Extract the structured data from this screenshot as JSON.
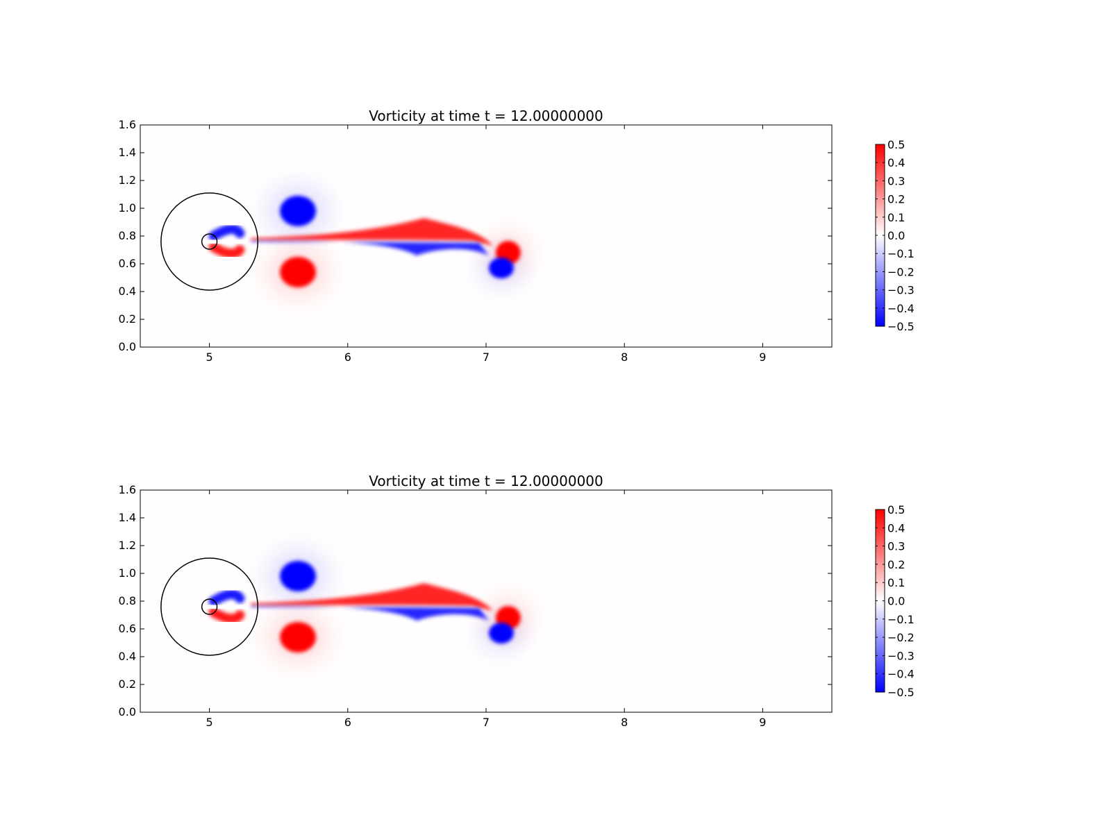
{
  "chart_data": [
    {
      "type": "heatmap",
      "title": "Vorticity at time t =    12.00000000",
      "xlabel": "",
      "ylabel": "",
      "xlim": [
        4.5,
        9.5
      ],
      "ylim": [
        0.0,
        1.6
      ],
      "x_ticks": [
        5,
        6,
        7,
        8,
        9
      ],
      "y_ticks": [
        0.0,
        0.2,
        0.4,
        0.6,
        0.8,
        1.0,
        1.2,
        1.4,
        1.6
      ],
      "colorbar": {
        "min": -0.5,
        "max": 0.5,
        "colormap": [
          "#0000ff",
          "#ffffff",
          "#ff0000"
        ],
        "ticks": [
          0.5,
          0.4,
          0.3,
          0.2,
          0.1,
          0.0,
          -0.1,
          -0.2,
          -0.3,
          -0.4,
          -0.5
        ],
        "tick_labels": [
          "0.5",
          "0.4",
          "0.3",
          "0.2",
          "0.1",
          "0.0",
          "−0.1",
          "−0.2",
          "−0.3",
          "−0.4",
          "−0.5"
        ]
      },
      "circles": [
        {
          "cx": 5.0,
          "cy": 0.76,
          "r": 0.35
        },
        {
          "cx": 5.0,
          "cy": 0.76,
          "r": 0.055
        }
      ],
      "vortices": [
        {
          "x": 5.64,
          "y": 0.98,
          "rx": 0.13,
          "ry": 0.11,
          "value": -0.5
        },
        {
          "x": 5.64,
          "y": 0.54,
          "rx": 0.13,
          "ry": 0.11,
          "value": 0.5
        },
        {
          "x": 7.16,
          "y": 0.68,
          "rx": 0.09,
          "ry": 0.085,
          "value": 0.5
        },
        {
          "x": 7.11,
          "y": 0.57,
          "rx": 0.09,
          "ry": 0.075,
          "value": -0.5
        }
      ]
    },
    {
      "type": "heatmap",
      "title": "Vorticity at time t =    12.00000000",
      "xlabel": "",
      "ylabel": "",
      "xlim": [
        4.5,
        9.5
      ],
      "ylim": [
        0.0,
        1.6
      ],
      "x_ticks": [
        5,
        6,
        7,
        8,
        9
      ],
      "y_ticks": [
        0.0,
        0.2,
        0.4,
        0.6,
        0.8,
        1.0,
        1.2,
        1.4,
        1.6
      ],
      "colorbar": {
        "min": -0.5,
        "max": 0.5,
        "colormap": [
          "#0000ff",
          "#ffffff",
          "#ff0000"
        ],
        "ticks": [
          0.5,
          0.4,
          0.3,
          0.2,
          0.1,
          0.0,
          -0.1,
          -0.2,
          -0.3,
          -0.4,
          -0.5
        ],
        "tick_labels": [
          "0.5",
          "0.4",
          "0.3",
          "0.2",
          "0.1",
          "0.0",
          "−0.1",
          "−0.2",
          "−0.3",
          "−0.4",
          "−0.5"
        ]
      },
      "circles": [
        {
          "cx": 5.0,
          "cy": 0.76,
          "r": 0.35
        },
        {
          "cx": 5.0,
          "cy": 0.76,
          "r": 0.055
        }
      ],
      "vortices": [
        {
          "x": 5.64,
          "y": 0.98,
          "rx": 0.13,
          "ry": 0.11,
          "value": -0.5
        },
        {
          "x": 5.64,
          "y": 0.54,
          "rx": 0.13,
          "ry": 0.11,
          "value": 0.5
        },
        {
          "x": 7.16,
          "y": 0.68,
          "rx": 0.09,
          "ry": 0.085,
          "value": 0.5
        },
        {
          "x": 7.11,
          "y": 0.57,
          "rx": 0.09,
          "ry": 0.075,
          "value": -0.5
        }
      ]
    }
  ]
}
